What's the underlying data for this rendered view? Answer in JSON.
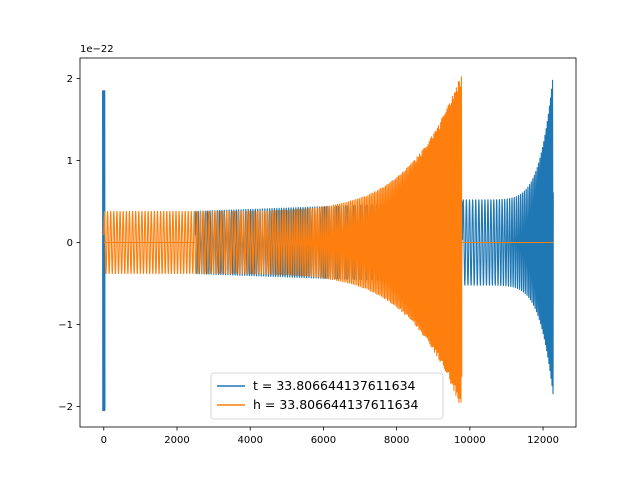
{
  "chart_data": {
    "type": "line",
    "title": "",
    "xlabel": "",
    "ylabel": "",
    "y_offset_label": "1e−22",
    "xlim": [
      -650,
      12900
    ],
    "ylim": [
      -2.25,
      2.25
    ],
    "x_ticks": [
      0,
      2000,
      4000,
      6000,
      8000,
      10000,
      12000
    ],
    "x_tick_labels": [
      "0",
      "2000",
      "4000",
      "6000",
      "8000",
      "10000",
      "12000"
    ],
    "y_ticks": [
      -2,
      -1,
      0,
      1,
      2
    ],
    "y_tick_labels": [
      "−2",
      "−1",
      "0",
      "1",
      "2"
    ],
    "grid": false,
    "legend_position": "lower center",
    "series": [
      {
        "name": "t = 33.806644137611634",
        "color": "#1f77b4",
        "segments": [
          {
            "kind": "spike",
            "x": 0,
            "y_max": 1.85,
            "y_min": -2.05
          },
          {
            "kind": "oscillation",
            "x_start": 2500,
            "x_end": 9800,
            "amp_start": 0.38,
            "amp_end": 0.5
          },
          {
            "kind": "chirp",
            "x_start": 9800,
            "x_end": 12280,
            "amp_start": 0.52,
            "amp_end": 2.07,
            "amp_min_end": -1.88
          },
          {
            "kind": "flat",
            "x_start": 9800,
            "x_end": 12280,
            "y": 0
          }
        ]
      },
      {
        "name": "h = 33.806644137611634",
        "color": "#ff7f0e",
        "segments": [
          {
            "kind": "flat",
            "x_start": 0,
            "x_end": 2500,
            "y": 0
          },
          {
            "kind": "chirp",
            "x_start": 0,
            "x_end": 9780,
            "amp_start": 0.38,
            "amp_end": 2.07,
            "amp_min_end": -2.05
          },
          {
            "kind": "flat",
            "x_start": 9780,
            "x_end": 12280,
            "y": 0
          }
        ]
      }
    ]
  }
}
